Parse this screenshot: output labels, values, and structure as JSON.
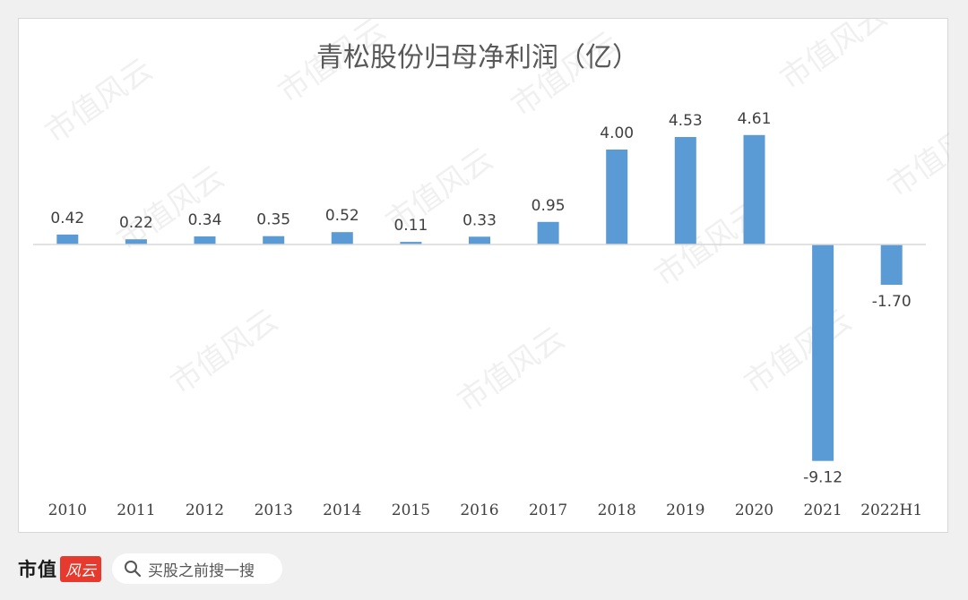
{
  "chart_data": {
    "type": "bar",
    "title": "青松股份归母净利润（亿）",
    "categories": [
      "2010",
      "2011",
      "2012",
      "2013",
      "2014",
      "2015",
      "2016",
      "2017",
      "2018",
      "2019",
      "2020",
      "2021",
      "2022H1"
    ],
    "values": [
      0.42,
      0.22,
      0.34,
      0.35,
      0.52,
      0.11,
      0.33,
      0.95,
      4.0,
      4.53,
      4.61,
      -9.12,
      -1.7
    ],
    "value_labels": [
      "0.42",
      "0.22",
      "0.34",
      "0.35",
      "0.52",
      "0.11",
      "0.33",
      "0.95",
      "4.00",
      "4.53",
      "4.61",
      "-9.12",
      "-1.70"
    ],
    "xlabel": "",
    "ylabel": "",
    "ylim": [
      -10,
      6
    ],
    "grid": false,
    "legend": "none",
    "bar_color": "#5b9bd5"
  },
  "watermark": "市值风云",
  "footer": {
    "brand": "市值",
    "brand_badge": "风云",
    "search_icon": "search-icon",
    "search_text": "买股之前搜一搜"
  }
}
